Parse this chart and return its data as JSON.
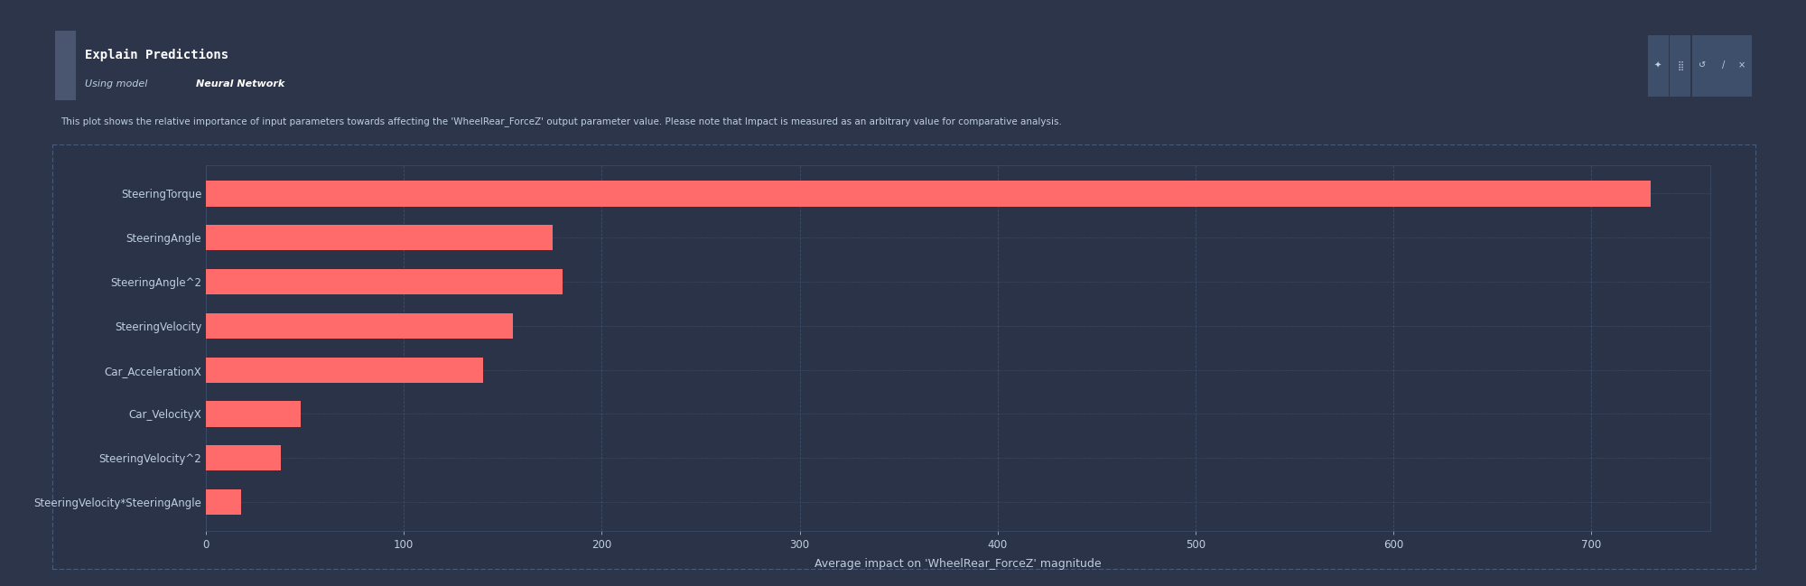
{
  "title": "Explain Predictions",
  "using_model_label": "Using model ",
  "model_name": "Neural Network",
  "description": "This plot shows the relative importance of input parameters towards affecting the 'WheelRear_ForceZ' output parameter value. Please note that Impact is measured as an arbitrary value for comparative analysis.",
  "categories": [
    "SteeringTorque",
    "SteeringAngle",
    "SteeringAngle^2",
    "SteeringVelocity",
    "Car_AccelerationX",
    "Car_VelocityX",
    "SteeringVelocity^2",
    "SteeringVelocity*SteeringAngle"
  ],
  "values": [
    730,
    175,
    180,
    155,
    140,
    48,
    38,
    18
  ],
  "bar_color": "#ff6b6b",
  "bg_color": "#2c3549",
  "panel_bg": "#2c3549",
  "desc_bg": "#303d52",
  "chart_bg": "#2a3347",
  "text_color": "#c0cfe0",
  "title_color": "#ffffff",
  "grid_color": "#3d4f6b",
  "border_color": "#4a5a7a",
  "xlabel": "Average impact on 'WheelRear_ForceZ' magnitude",
  "xlim": [
    0,
    760
  ],
  "xticks": [
    0,
    100,
    200,
    300,
    400,
    500,
    600,
    700
  ],
  "toolbar_icons": [
    "✲",
    "⋮⋮",
    "↺",
    "/",
    "×"
  ],
  "icon_bg": "#3d4f6b"
}
